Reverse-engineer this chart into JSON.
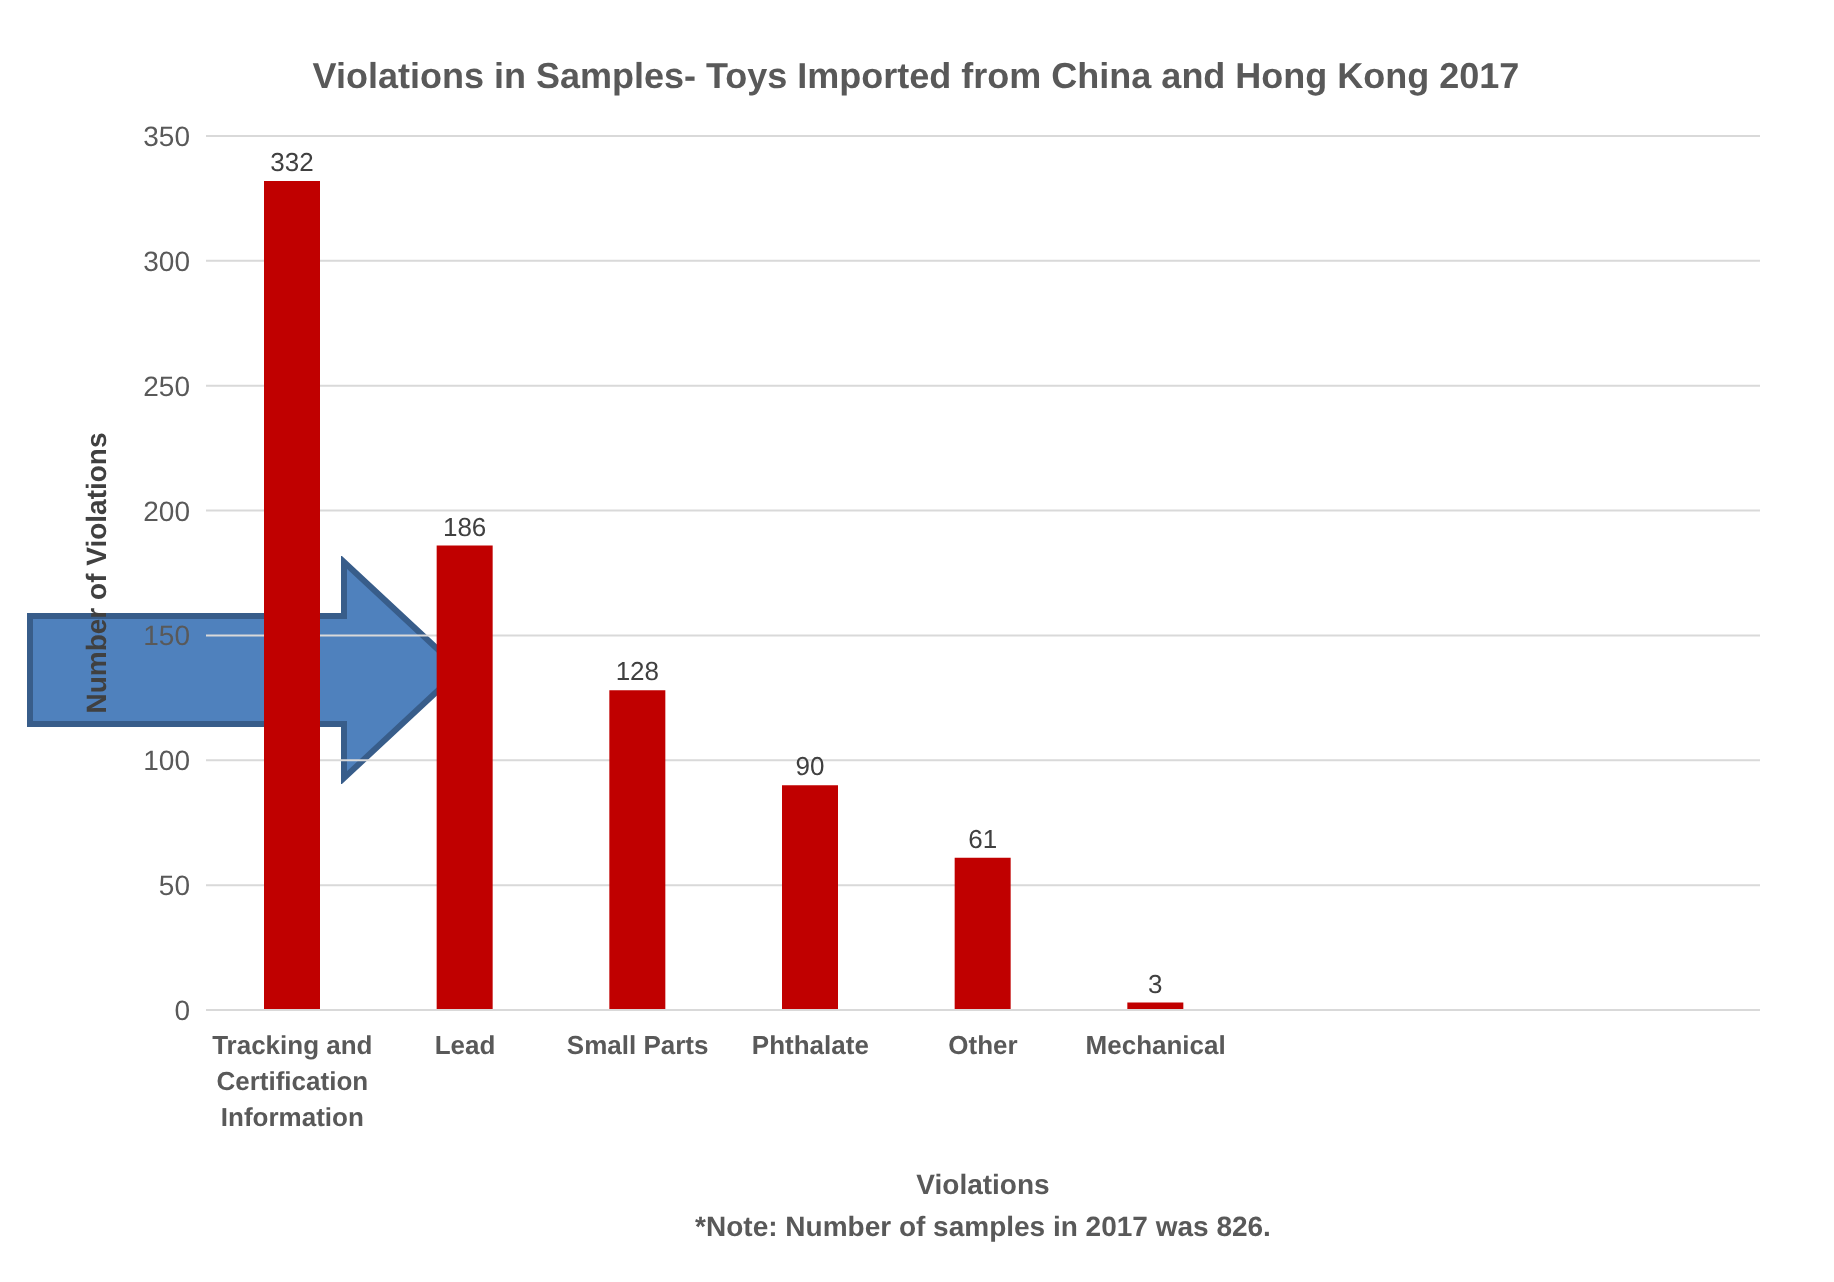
{
  "chart_data": {
    "type": "bar",
    "title": "Violations in Samples- Toys Imported from China and Hong Kong 2017",
    "xlabel": "Violations",
    "ylabel": "Number of Violations",
    "annotations": [
      "*Note: Number of samples in 2017 was 826."
    ],
    "categories": [
      "Tracking and Certification Information",
      "Lead",
      "Small Parts",
      "Phthalate",
      "Other",
      "Mechanical",
      null,
      null,
      null
    ],
    "values": [
      332,
      186,
      128,
      90,
      61,
      3,
      null,
      null,
      null
    ],
    "color": "#c00000",
    "ylim": [
      0,
      350
    ],
    "yticks": [
      0,
      50,
      100,
      150,
      200,
      250,
      300,
      350
    ],
    "grid": "y",
    "data_labels": true
  }
}
